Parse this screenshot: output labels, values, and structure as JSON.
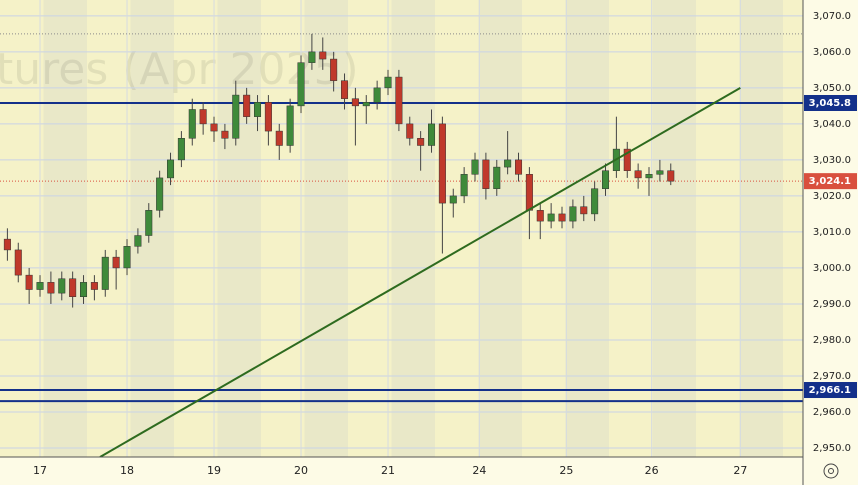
{
  "chart_data": {
    "type": "candlestick",
    "watermark": "tures (Apr 2025)",
    "xlim": [
      -0.46,
      8.77
    ],
    "xticks": [
      {
        "value": 0,
        "label": "17"
      },
      {
        "value": 1,
        "label": "18"
      },
      {
        "value": 2,
        "label": "19"
      },
      {
        "value": 3,
        "label": "20"
      },
      {
        "value": 4,
        "label": "21"
      },
      {
        "value": 5.05,
        "label": "24"
      },
      {
        "value": 6.05,
        "label": "25"
      },
      {
        "value": 7.03,
        "label": "26"
      },
      {
        "value": 8.05,
        "label": "27"
      }
    ],
    "ylim": [
      2947.5,
      3074.4
    ],
    "yticks": [
      {
        "value": 2950,
        "label": "2,950.0"
      },
      {
        "value": 2960,
        "label": "2,960.0"
      },
      {
        "value": 2970,
        "label": "2,970.0"
      },
      {
        "value": 2980,
        "label": "2,980.0"
      },
      {
        "value": 2990,
        "label": "2,990.0"
      },
      {
        "value": 3000,
        "label": "3,000.0"
      },
      {
        "value": 3010,
        "label": "3,010.0"
      },
      {
        "value": 3020,
        "label": "3,020.0"
      },
      {
        "value": 3030,
        "label": "3,030.0"
      },
      {
        "value": 3040,
        "label": "3,040.0"
      },
      {
        "value": 3050,
        "label": "3,050.0"
      },
      {
        "value": 3060,
        "label": "3,060.0"
      },
      {
        "value": 3070,
        "label": "3,070.0"
      }
    ],
    "grid": true,
    "up_color": "#3f8a3a",
    "down_color": "#c0392b",
    "x": [
      -0.375,
      -0.25,
      -0.125,
      0,
      0.125,
      0.25,
      0.375,
      0.5,
      0.625,
      0.75,
      0.875,
      1,
      1.125,
      1.25,
      1.375,
      1.5,
      1.625,
      1.75,
      1.875,
      2,
      2.125,
      2.25,
      2.375,
      2.5,
      2.625,
      2.75,
      2.875,
      3,
      3.125,
      3.25,
      3.375,
      3.5,
      3.625,
      3.75,
      3.875,
      4,
      4.125,
      4.25,
      4.375,
      4.5,
      4.625,
      4.75,
      4.875,
      5,
      5.125,
      5.25,
      5.375,
      5.5,
      5.625,
      5.75,
      5.875,
      6,
      6.125,
      6.25,
      6.375,
      6.5,
      6.625,
      6.75,
      6.875,
      7,
      7.125,
      7.25
    ],
    "open": [
      3008,
      3005,
      2998,
      2994,
      2996,
      2993,
      2997,
      2992,
      2996,
      2994,
      3003,
      3000,
      3006,
      3009,
      3016,
      3025,
      3030,
      3036,
      3044,
      3040,
      3038,
      3036,
      3048,
      3042,
      3046,
      3038,
      3034,
      3045,
      3057,
      3060,
      3058,
      3052,
      3047,
      3045,
      3046,
      3050,
      3053,
      3040,
      3036,
      3034,
      3040,
      3018,
      3020,
      3026,
      3030,
      3022,
      3028,
      3030,
      3026,
      3016,
      3013,
      3015,
      3013,
      3017,
      3015,
      3022,
      3027,
      3033,
      3027,
      3025,
      3026,
      3027
    ],
    "high": [
      3011,
      3007,
      3000,
      2998,
      2999,
      2999,
      2999,
      2998,
      2998,
      3005,
      3005,
      3008,
      3011,
      3018,
      3027,
      3032,
      3038,
      3047,
      3046,
      3042,
      3040,
      3052,
      3050,
      3048,
      3048,
      3040,
      3047,
      3059,
      3065,
      3064,
      3060,
      3054,
      3050,
      3048,
      3052,
      3055,
      3055,
      3042,
      3038,
      3044,
      3042,
      3022,
      3028,
      3032,
      3032,
      3030,
      3038,
      3032,
      3028,
      3018,
      3018,
      3017,
      3019,
      3020,
      3024,
      3029,
      3042,
      3035,
      3029,
      3028,
      3030,
      3029
    ],
    "low": [
      3002,
      2996,
      2990,
      2992,
      2990,
      2991,
      2989,
      2990,
      2991,
      2992,
      2994,
      2998,
      3004,
      3007,
      3014,
      3023,
      3028,
      3034,
      3037,
      3035,
      3033,
      3034,
      3040,
      3038,
      3034,
      3030,
      3032,
      3043,
      3055,
      3055,
      3049,
      3044,
      3034,
      3040,
      3044,
      3048,
      3038,
      3034,
      3027,
      3032,
      3004,
      3014,
      3018,
      3024,
      3019,
      3020,
      3026,
      3024,
      3008,
      3008,
      3011,
      3011,
      3011,
      3013,
      3013,
      3020,
      3025,
      3025,
      3022,
      3020,
      3024,
      3023
    ],
    "close": [
      3005,
      2998,
      2994,
      2996,
      2993,
      2997,
      2992,
      2996,
      2994,
      3003,
      3000,
      3006,
      3009,
      3016,
      3025,
      3030,
      3036,
      3044,
      3040,
      3038,
      3036,
      3048,
      3042,
      3046,
      3038,
      3034,
      3045,
      3057,
      3060,
      3058,
      3052,
      3047,
      3045,
      3046,
      3050,
      3053,
      3040,
      3036,
      3034,
      3040,
      3018,
      3020,
      3026,
      3030,
      3022,
      3028,
      3030,
      3026,
      3016,
      3013,
      3015,
      3013,
      3017,
      3015,
      3022,
      3027,
      3033,
      3027,
      3025,
      3026,
      3027,
      3024.1
    ],
    "levels": [
      {
        "value": 3065,
        "color": "#8a8a8a",
        "style": "dotted"
      },
      {
        "value": 3045.8,
        "label": "3,045.8",
        "color": "#13308a",
        "style": "solid"
      },
      {
        "value": 3024.1,
        "label": "3,024.1",
        "color": "#d9503e",
        "style": "dotted"
      },
      {
        "value": 2966.1,
        "label": "2,966.1",
        "color": "#13308a",
        "style": "solid"
      },
      {
        "value": 2963,
        "color": "#13308a",
        "style": "solid"
      }
    ],
    "trendline": {
      "x": [
        0.69,
        8.05
      ],
      "y": [
        2947.5,
        3050
      ],
      "color": "#2e6b1f"
    }
  }
}
